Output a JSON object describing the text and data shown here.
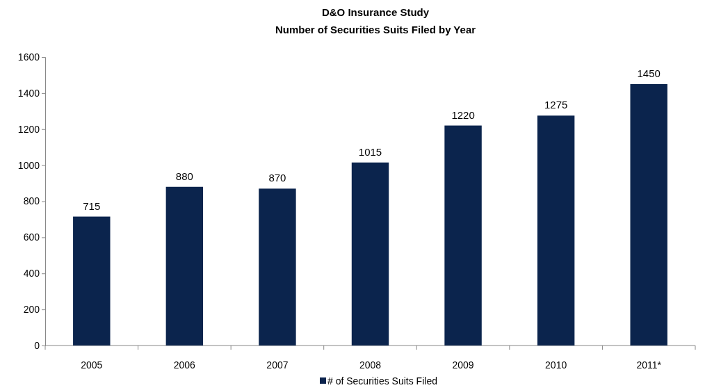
{
  "chart_data": {
    "type": "bar",
    "title": "D&O Insurance Study",
    "subtitle": "Number of Securities Suits Filed by Year",
    "categories": [
      "2005",
      "2006",
      "2007",
      "2008",
      "2009",
      "2010",
      "2011*"
    ],
    "series": [
      {
        "name": "# of Securities Suits Filed",
        "color": "#0b244d",
        "values": [
          715,
          880,
          870,
          1015,
          1220,
          1275,
          1450
        ]
      }
    ],
    "ylim": [
      0,
      1600
    ],
    "yticks": [
      0,
      200,
      400,
      600,
      800,
      1000,
      1200,
      1400,
      1600
    ],
    "data_labels": true,
    "legend": "bottom",
    "grid": false
  }
}
